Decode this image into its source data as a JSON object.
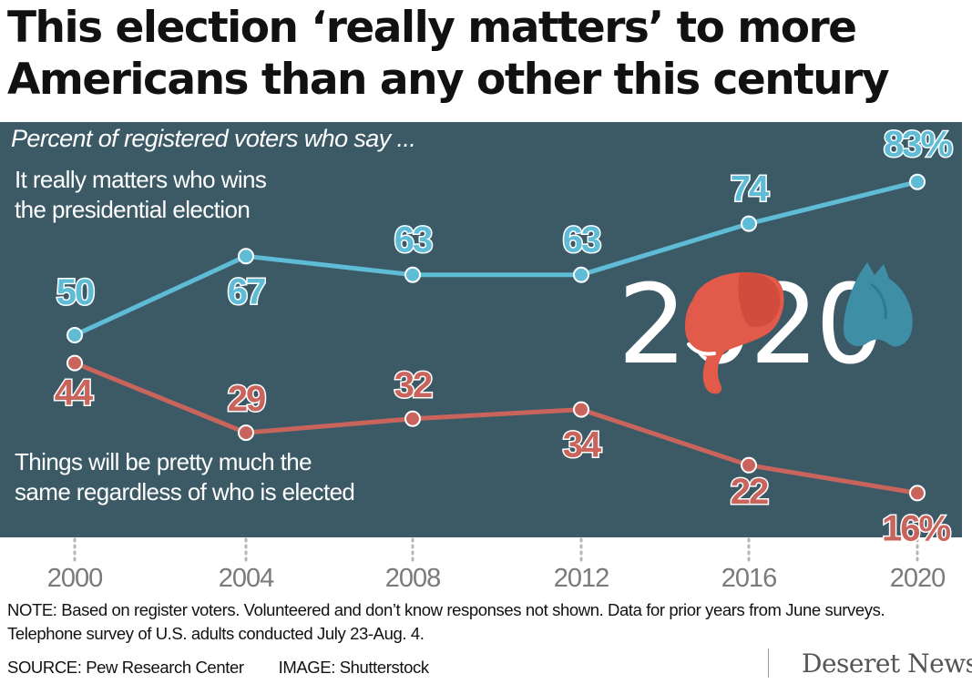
{
  "title_lines": [
    "This election ‘really matters’ to more",
    "Americans than any other this century"
  ],
  "subtitle": "Percent of registered voters who say ...",
  "series_labels": {
    "matters": [
      "It really matters who wins",
      "the presidential election"
    ],
    "same": [
      "Things will be pretty much the",
      "same regardless of who is elected"
    ]
  },
  "logo_text": "2020",
  "colors": {
    "panel": "#3c5a66",
    "matters": "#5fbcd6",
    "same": "#c9645c",
    "elephant": "#e25b4a",
    "donkey": "#3e8fa6"
  },
  "chart_data": {
    "type": "line",
    "x": [
      2000,
      2004,
      2008,
      2012,
      2016,
      2020
    ],
    "series": [
      {
        "id": "matters",
        "values": [
          50,
          67,
          63,
          63,
          74,
          83
        ],
        "labels": [
          "50",
          "67",
          "63",
          "63",
          "74",
          "83%"
        ]
      },
      {
        "id": "same",
        "values": [
          44,
          29,
          32,
          34,
          22,
          16
        ],
        "labels": [
          "44",
          "29",
          "32",
          "34",
          "22",
          "16%"
        ]
      }
    ],
    "tick_labels": [
      "2000",
      "2004",
      "2008",
      "2012",
      "2016",
      "2020"
    ]
  },
  "note_lines": [
    "NOTE: Based on register voters. Volunteered and don’t know responses not shown. Data for prior years from June surveys.",
    "Telephone survey of U.S. adults conducted July 23-Aug. 4."
  ],
  "source": "SOURCE: Pew Research Center",
  "image_credit": "IMAGE: Shutterstock",
  "brand": "Deseret News"
}
